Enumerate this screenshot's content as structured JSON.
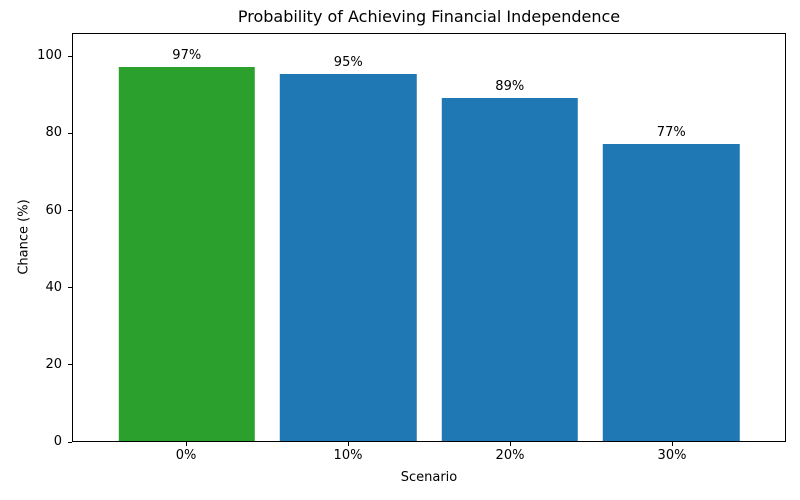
{
  "chart_data": {
    "type": "bar",
    "title": "Probability of Achieving Financial Independence",
    "xlabel": "Scenario",
    "ylabel": "Chance (%)",
    "categories": [
      "0%",
      "10%",
      "20%",
      "30%"
    ],
    "values": [
      97,
      95,
      89,
      77
    ],
    "bar_labels": [
      "97%",
      "95%",
      "89%",
      "77%"
    ],
    "bar_colors": [
      "#2ca02c",
      "#1f77b4",
      "#1f77b4",
      "#1f77b4"
    ],
    "yticks": [
      0,
      20,
      40,
      60,
      80,
      100
    ],
    "ylim": [
      0,
      106
    ],
    "grid": false,
    "legend_position": "none",
    "colors": {
      "highlight_green": "#2ca02c",
      "default_blue": "#1f77b4",
      "spine": "#000000",
      "background": "#ffffff"
    }
  }
}
